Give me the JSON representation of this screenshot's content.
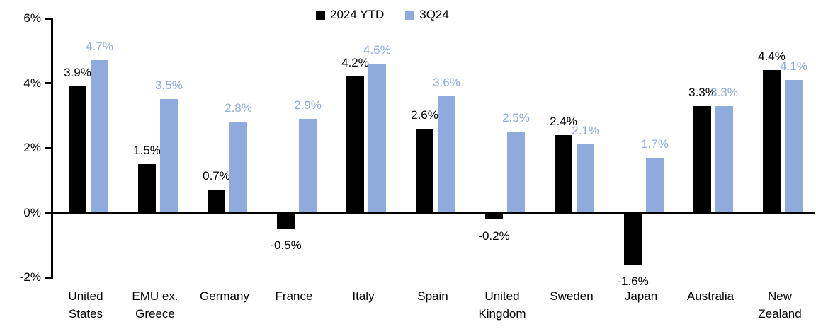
{
  "chart_data": {
    "type": "bar",
    "title": "",
    "xlabel": "",
    "ylabel": "",
    "value_suffix": "%",
    "grid": false,
    "legend_position": "top-center",
    "background_color": "#ffffff",
    "axis_color": "#000000",
    "categories": [
      "United States",
      "EMU ex. Greece",
      "Germany",
      "France",
      "Italy",
      "Spain",
      "United Kingdom",
      "Sweden",
      "Japan",
      "Australia",
      "New Zealand"
    ],
    "category_lines": [
      [
        "United",
        "States"
      ],
      [
        "EMU ex.",
        "Greece"
      ],
      [
        "Germany"
      ],
      [
        "France"
      ],
      [
        "Italy"
      ],
      [
        "Spain"
      ],
      [
        "United",
        "Kingdom"
      ],
      [
        "Sweden"
      ],
      [
        "Japan"
      ],
      [
        "Australia"
      ],
      [
        "New",
        "Zealand"
      ]
    ],
    "series": [
      {
        "name": "2024 YTD",
        "color": "#000000",
        "values": [
          3.9,
          1.5,
          0.7,
          -0.5,
          4.2,
          2.6,
          -0.2,
          2.4,
          -1.6,
          3.3,
          4.4
        ],
        "labels": [
          "3.9%",
          "1.5%",
          "0.7%",
          "-0.5%",
          "4.2%",
          "2.6%",
          "-0.2%",
          "2.4%",
          "-1.6%",
          "3.3%",
          "4.4%"
        ]
      },
      {
        "name": "3Q24",
        "color": "#8FAADC",
        "values": [
          4.7,
          3.5,
          2.8,
          2.9,
          4.6,
          3.6,
          2.5,
          2.1,
          1.7,
          3.3,
          4.1
        ],
        "labels": [
          "4.7%",
          "3.5%",
          "2.8%",
          "2.9%",
          "4.6%",
          "3.6%",
          "2.5%",
          "2.1%",
          "1.7%",
          "3.3%",
          "4.1%"
        ]
      }
    ],
    "y_axis": {
      "min": -2,
      "max": 6,
      "tick_step": 2,
      "ticks": [
        {
          "value": 6,
          "label": "6%"
        },
        {
          "value": 4,
          "label": "4%"
        },
        {
          "value": 2,
          "label": "2%"
        },
        {
          "value": 0,
          "label": "0%"
        },
        {
          "value": -2,
          "label": "-2%"
        }
      ]
    }
  }
}
